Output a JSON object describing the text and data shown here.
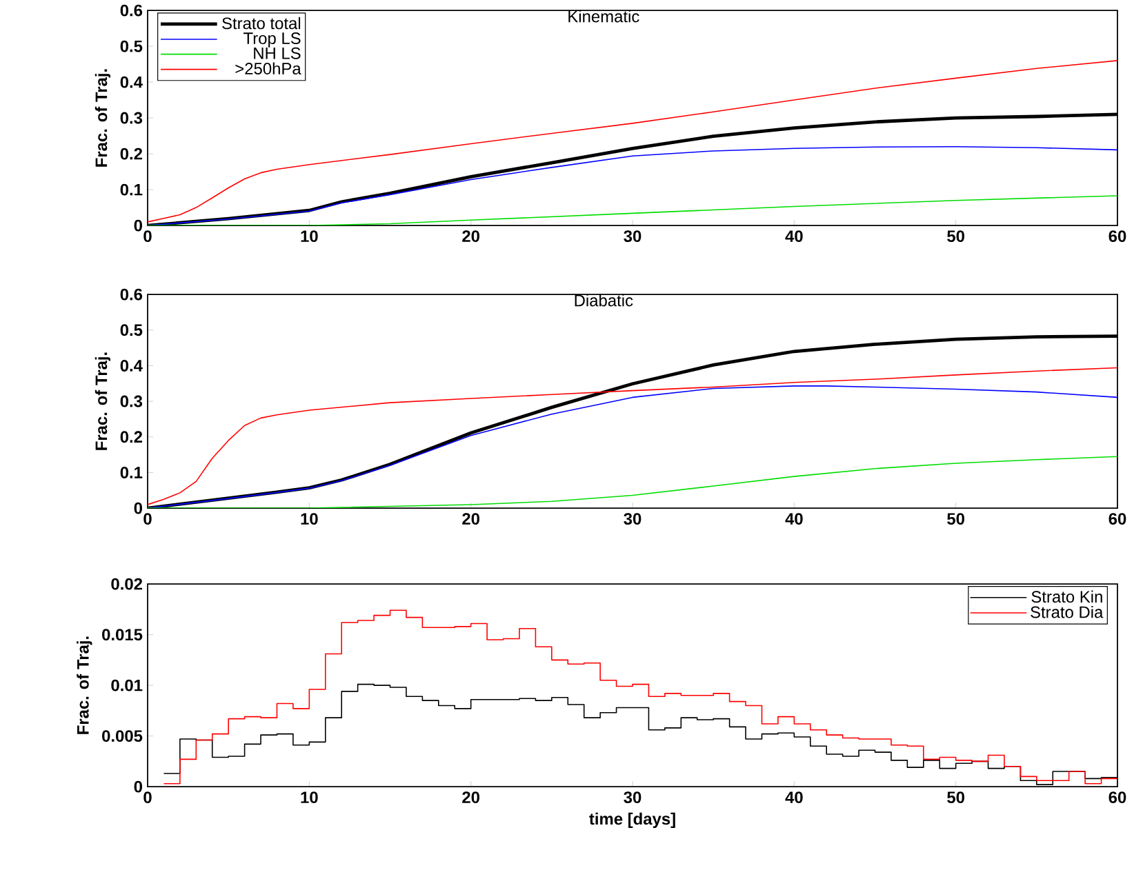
{
  "chart_data": [
    {
      "type": "line",
      "title": "Kinematic",
      "ylabel": "Frac. of Traj.",
      "xlim": [
        0,
        60
      ],
      "ylim": [
        0,
        0.6
      ],
      "xticks": [
        0,
        10,
        20,
        30,
        40,
        50,
        60
      ],
      "yticks": [
        0,
        0.1,
        0.2,
        0.3,
        0.4,
        0.5,
        0.6
      ],
      "legend": "top left",
      "series": [
        {
          "name": "Strato total",
          "color": "#000000",
          "x": [
            0,
            5,
            10,
            12,
            15,
            20,
            25,
            30,
            35,
            40,
            45,
            50,
            55,
            60
          ],
          "values": [
            0,
            0.019,
            0.042,
            0.066,
            0.09,
            0.136,
            0.175,
            0.215,
            0.249,
            0.272,
            0.289,
            0.3,
            0.304,
            0.31
          ]
        },
        {
          "name": "Trop LS",
          "color": "#0000ff",
          "x": [
            0,
            5,
            10,
            12,
            15,
            20,
            25,
            30,
            35,
            40,
            45,
            50,
            55,
            60
          ],
          "values": [
            0,
            0.018,
            0.04,
            0.063,
            0.086,
            0.128,
            0.162,
            0.194,
            0.208,
            0.215,
            0.219,
            0.22,
            0.217,
            0.211
          ]
        },
        {
          "name": "NH LS",
          "color": "#00dd00",
          "x": [
            0,
            10,
            15,
            20,
            30,
            40,
            50,
            60
          ],
          "values": [
            0,
            0.0,
            0.005,
            0.015,
            0.034,
            0.053,
            0.07,
            0.083
          ]
        },
        {
          "name": ">250hPa",
          "color": "#ff0000",
          "x": [
            0,
            1,
            2,
            3,
            4,
            5,
            6,
            7,
            8,
            10,
            15,
            20,
            25,
            30,
            35,
            40,
            45,
            50,
            55,
            60
          ],
          "values": [
            0.01,
            0.02,
            0.03,
            0.05,
            0.077,
            0.105,
            0.13,
            0.147,
            0.157,
            0.17,
            0.198,
            0.228,
            0.257,
            0.285,
            0.317,
            0.35,
            0.383,
            0.411,
            0.438,
            0.46
          ]
        }
      ]
    },
    {
      "type": "line",
      "title": "Diabatic",
      "ylabel": "Frac. of Traj.",
      "xlim": [
        0,
        60
      ],
      "ylim": [
        0,
        0.6
      ],
      "xticks": [
        0,
        10,
        20,
        30,
        40,
        50,
        60
      ],
      "yticks": [
        0,
        0.1,
        0.2,
        0.3,
        0.4,
        0.5,
        0.6
      ],
      "series": [
        {
          "color": "#000000",
          "x": [
            0,
            5,
            8,
            10,
            12,
            15,
            20,
            25,
            30,
            35,
            40,
            45,
            50,
            55,
            60
          ],
          "values": [
            0,
            0.028,
            0.045,
            0.057,
            0.079,
            0.123,
            0.211,
            0.283,
            0.349,
            0.402,
            0.44,
            0.46,
            0.474,
            0.481,
            0.483
          ]
        },
        {
          "color": "#0000ff",
          "x": [
            0,
            5,
            8,
            10,
            12,
            15,
            20,
            25,
            30,
            35,
            40,
            42,
            45,
            50,
            55,
            60
          ],
          "values": [
            0,
            0.027,
            0.044,
            0.056,
            0.077,
            0.12,
            0.204,
            0.264,
            0.311,
            0.336,
            0.343,
            0.343,
            0.34,
            0.334,
            0.326,
            0.311
          ]
        },
        {
          "color": "#00dd00",
          "x": [
            0,
            10,
            20,
            25,
            30,
            35,
            40,
            45,
            50,
            55,
            60
          ],
          "values": [
            0,
            0,
            0.01,
            0.019,
            0.036,
            0.062,
            0.089,
            0.111,
            0.126,
            0.136,
            0.145
          ]
        },
        {
          "color": "#ff0000",
          "x": [
            0,
            1,
            2,
            3,
            4,
            5,
            6,
            7,
            8,
            10,
            15,
            20,
            25,
            30,
            35,
            40,
            45,
            50,
            55,
            60
          ],
          "values": [
            0.01,
            0.025,
            0.043,
            0.075,
            0.14,
            0.19,
            0.232,
            0.253,
            0.262,
            0.275,
            0.296,
            0.308,
            0.319,
            0.33,
            0.34,
            0.353,
            0.362,
            0.374,
            0.385,
            0.394
          ]
        }
      ]
    },
    {
      "type": "histogram",
      "xlabel": "time [days]",
      "ylabel": "Frac. of Traj.",
      "xlim": [
        0,
        60
      ],
      "ylim": [
        0,
        0.02
      ],
      "xticks": [
        0,
        10,
        20,
        30,
        40,
        50,
        60
      ],
      "yticks": [
        0,
        0.005,
        0.01,
        0.015,
        0.02
      ],
      "legend": "top right",
      "bins": [
        1,
        2,
        3,
        4,
        5,
        6,
        7,
        8,
        9,
        10,
        11,
        12,
        13,
        14,
        15,
        16,
        17,
        18,
        19,
        20,
        21,
        22,
        23,
        24,
        25,
        26,
        27,
        28,
        29,
        30,
        31,
        32,
        33,
        34,
        35,
        36,
        37,
        38,
        39,
        40,
        41,
        42,
        43,
        44,
        45,
        46,
        47,
        48,
        49,
        50,
        51,
        52,
        53,
        54,
        55,
        56,
        57,
        58,
        59,
        60
      ],
      "series": [
        {
          "name": "Strato Kin",
          "color": "#000000",
          "values": [
            0.0013,
            0.0047,
            0.0046,
            0.0029,
            0.003,
            0.0042,
            0.0051,
            0.0052,
            0.0041,
            0.0044,
            0.0068,
            0.0094,
            0.0101,
            0.01,
            0.0098,
            0.0089,
            0.0085,
            0.008,
            0.0077,
            0.0086,
            0.0086,
            0.0086,
            0.0087,
            0.0085,
            0.0088,
            0.0081,
            0.0068,
            0.0073,
            0.0078,
            0.0078,
            0.0056,
            0.0058,
            0.0068,
            0.0066,
            0.0067,
            0.0059,
            0.0047,
            0.0052,
            0.0053,
            0.0049,
            0.004,
            0.0032,
            0.003,
            0.0036,
            0.0034,
            0.0026,
            0.0019,
            0.0026,
            0.0018,
            0.0023,
            0.0025,
            0.0018,
            0.002,
            0.0006,
            0.0002,
            0.0015,
            0.0015,
            0.0008,
            0.0009
          ]
        },
        {
          "name": "Strato Dia",
          "color": "#ff0000",
          "values": [
            0.0003,
            0.0027,
            0.0046,
            0.0052,
            0.0067,
            0.0069,
            0.0068,
            0.0082,
            0.0077,
            0.0096,
            0.0131,
            0.0162,
            0.0164,
            0.0169,
            0.0174,
            0.0167,
            0.0157,
            0.0157,
            0.0158,
            0.0161,
            0.0145,
            0.0146,
            0.0156,
            0.0138,
            0.0125,
            0.0121,
            0.0122,
            0.0105,
            0.0099,
            0.0101,
            0.0089,
            0.0092,
            0.009,
            0.009,
            0.0092,
            0.0084,
            0.008,
            0.0062,
            0.0069,
            0.0062,
            0.0056,
            0.0051,
            0.0048,
            0.0047,
            0.0047,
            0.0041,
            0.004,
            0.0027,
            0.0029,
            0.0026,
            0.0025,
            0.0031,
            0.002,
            0.001,
            0.0006,
            0.0006,
            0.0015,
            0.0003,
            0.0008
          ]
        }
      ]
    }
  ]
}
